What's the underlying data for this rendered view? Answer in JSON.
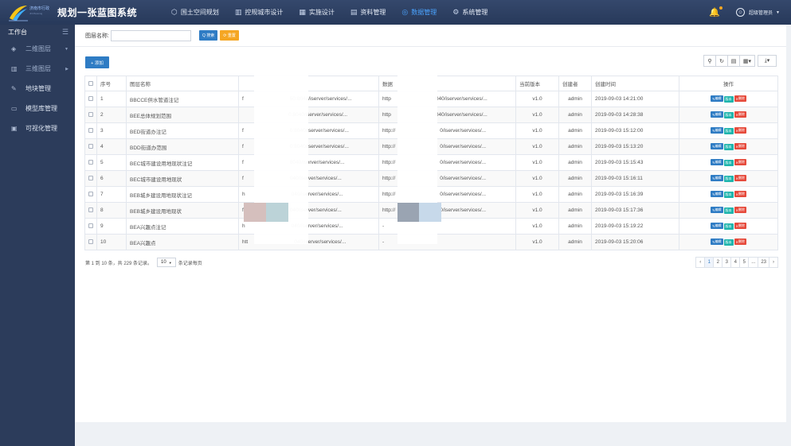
{
  "app": {
    "logo_text": "济南市行政",
    "logo_sub": "JN Planning",
    "title": "规划一张蓝图系统"
  },
  "topnav": [
    {
      "label": "国土空间规划",
      "icon": "cube-icon",
      "active": false
    },
    {
      "label": "控规城市设计",
      "icon": "building-icon",
      "active": false
    },
    {
      "label": "实施设计",
      "icon": "grid-panel-icon",
      "active": false
    },
    {
      "label": "资料管理",
      "icon": "folder-icon",
      "active": false
    },
    {
      "label": "数据管理",
      "icon": "database-icon",
      "active": true
    },
    {
      "label": "系统管理",
      "icon": "gear-icon",
      "active": false
    }
  ],
  "user": {
    "name": "超级管理员"
  },
  "sidebar": {
    "head": "工作台",
    "items": [
      {
        "label": "二维图层",
        "icon": "layers-icon",
        "arrow": "▼"
      },
      {
        "label": "三维图层",
        "icon": "cube3d-icon",
        "arrow": "▶"
      },
      {
        "label": "地块管理",
        "icon": "pen-icon",
        "arrow": ""
      },
      {
        "label": "模型库管理",
        "icon": "monitor-icon",
        "arrow": ""
      },
      {
        "label": "可视化管理",
        "icon": "window-icon",
        "arrow": ""
      }
    ]
  },
  "search": {
    "label": "图层名称:",
    "value": "",
    "search_btn": "Q 搜索",
    "reset_btn": "⟳ 重置"
  },
  "toolbar": {
    "add_btn": "+ 添加"
  },
  "table": {
    "headers": [
      "序号",
      "图层名称",
      "",
      "数据",
      "当前版本",
      "创建者",
      "创建时间",
      "操作"
    ],
    "rows": [
      {
        "no": "1",
        "name": "BBCCE供水管道注记",
        "url1_a": "f",
        "url1_b": "50:8040/iserver/services/...",
        "url2_a": "http",
        "url2_b": "040/iserver/services/...",
        "ver": "v1.0",
        "user": "admin",
        "time": "2019-09-03 14:21:00"
      },
      {
        "no": "2",
        "name": "BEE总体规划范围",
        "url1_a": "",
        "url1_b": "0:8040/iserver/services/...",
        "url2_a": "http",
        "url2_b": "040/iserver/services/...",
        "ver": "v1.0",
        "user": "admin",
        "time": "2019-09-03 14:28:38"
      },
      {
        "no": "3",
        "name": "BED街道办注记",
        "url1_a": "f",
        "url1_b": "0:8040/iserver/services/...",
        "url2_a": "http://",
        "url2_b": "0/iserver/services/...",
        "ver": "v1.0",
        "user": "admin",
        "time": "2019-09-03 15:12:00"
      },
      {
        "no": "4",
        "name": "BDD街道办范围",
        "url1_a": "f",
        "url1_b": "0:8040/iserver/services/...",
        "url2_a": "http://",
        "url2_b": "0/iserver/services/...",
        "ver": "v1.0",
        "user": "admin",
        "time": "2019-09-03 15:13:20"
      },
      {
        "no": "5",
        "name": "BEC城市建设用地现状注记",
        "url1_a": "f",
        "url1_b": "8040/iserver/services/...",
        "url2_a": "http://",
        "url2_b": "0/iserver/services/...",
        "ver": "v1.0",
        "user": "admin",
        "time": "2019-09-03 15:15:43"
      },
      {
        "no": "6",
        "name": "BEC城市建设用地现状",
        "url1_a": "f",
        "url1_b": "040/iserver/services/...",
        "url2_a": "http://",
        "url2_b": "0/iserver/services/...",
        "ver": "v1.0",
        "user": "admin",
        "time": "2019-09-03 15:16:11"
      },
      {
        "no": "7",
        "name": "BEB城乡建设用地现状注记",
        "url1_a": "h",
        "url1_b": "040/iserver/services/...",
        "url2_a": "http://",
        "url2_b": "0/iserver/services/...",
        "ver": "v1.0",
        "user": "admin",
        "time": "2019-09-03 15:16:39"
      },
      {
        "no": "8",
        "name": "BEB城乡建设用地现状",
        "url1_a": "f",
        "url1_b": "040/iserver/services/...",
        "url2_a": "http://",
        "url2_b": "0/iserver/services/...",
        "ver": "v1.0",
        "user": "admin",
        "time": "2019-09-03 15:17:36"
      },
      {
        "no": "9",
        "name": "BEA兴趣点注记",
        "url1_a": "h",
        "url1_b": "040/iserver/services/...",
        "url2_a": "-",
        "url2_b": "",
        "ver": "v1.0",
        "user": "admin",
        "time": "2019-09-03 15:19:22"
      },
      {
        "no": "10",
        "name": "BEA兴趣点",
        "url1_a": "htt",
        "url1_b": "040/iserver/services/...",
        "url2_a": "-",
        "url2_b": "",
        "ver": "v1.0",
        "user": "admin",
        "time": "2019-09-03 15:20:06"
      }
    ],
    "op_edit": "编辑",
    "op_version": "版本",
    "op_delete": "删除"
  },
  "pager": {
    "info": "第 1 到 10 条，共 229 条记录。",
    "page_size": "10",
    "per_page": "条记录每页",
    "pages": [
      "‹",
      "1",
      "2",
      "3",
      "4",
      "5",
      "...",
      "23",
      "›"
    ],
    "active": "1"
  }
}
